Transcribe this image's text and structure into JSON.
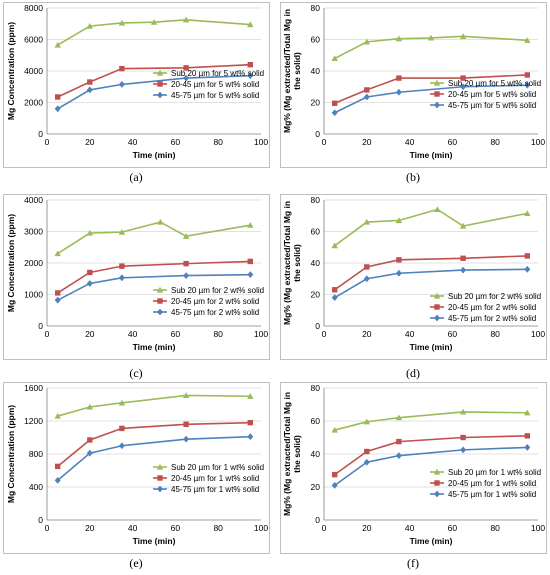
{
  "colors": {
    "green": "#9BBB59",
    "red": "#C0504D",
    "blue": "#4F81BD",
    "grid": "#d9d9d9",
    "frame": "#bfbfbf"
  },
  "labels": [
    "(a)",
    "(b)",
    "(c)",
    "(d)",
    "(e)",
    "(f)"
  ],
  "chart_data": [
    {
      "type": "line",
      "xlabel": "Time (min)",
      "ylabel": "Mg Concentration (ppm)",
      "xlim": [
        0,
        100
      ],
      "ylim": [
        0,
        8000
      ],
      "xticks": [
        0,
        20,
        40,
        60,
        80,
        100
      ],
      "yticks": [
        0,
        2000,
        4000,
        6000,
        8000
      ],
      "legend_position": "center-right",
      "series": [
        {
          "name": "Sub 20 µm for 5 wt% solid",
          "color": "#9BBB59",
          "marker": "triangle",
          "x": [
            5,
            20,
            35,
            50,
            65,
            95
          ],
          "values": [
            5650,
            6850,
            7050,
            7100,
            7250,
            6950
          ]
        },
        {
          "name": "20-45 µm for 5 wt% solid",
          "color": "#C0504D",
          "marker": "square",
          "x": [
            5,
            20,
            35,
            65,
            95
          ],
          "values": [
            2350,
            3300,
            4150,
            4200,
            4400
          ]
        },
        {
          "name": "45-75 µm for 5 wt% solid",
          "color": "#4F81BD",
          "marker": "diamond",
          "x": [
            5,
            20,
            35,
            65,
            95
          ],
          "values": [
            1600,
            2800,
            3150,
            3550,
            3700
          ]
        }
      ]
    },
    {
      "type": "line",
      "xlabel": "Time (min)",
      "ylabel": "Mg% (Mg extracted/Total Mg in the solid)",
      "xlim": [
        0,
        100
      ],
      "ylim": [
        0,
        80
      ],
      "xticks": [
        0,
        20,
        40,
        60,
        80,
        100
      ],
      "yticks": [
        0,
        20,
        40,
        60,
        80
      ],
      "legend_position": "center-right",
      "series": [
        {
          "name": "Sub 20 µm for 5 wt% solid",
          "color": "#9BBB59",
          "marker": "triangle",
          "x": [
            5,
            20,
            35,
            50,
            65,
            95
          ],
          "values": [
            48,
            58.5,
            60.5,
            61,
            62,
            59.5
          ]
        },
        {
          "name": "20-45 µm for 5 wt% solid",
          "color": "#C0504D",
          "marker": "square",
          "x": [
            5,
            20,
            35,
            65,
            95
          ],
          "values": [
            19.5,
            28,
            35.5,
            35.5,
            37.5
          ]
        },
        {
          "name": "45-75 µm for 5 wt% solid",
          "color": "#4F81BD",
          "marker": "diamond",
          "x": [
            5,
            20,
            35,
            65,
            95
          ],
          "values": [
            13.5,
            23.5,
            26.5,
            30,
            31
          ]
        }
      ]
    },
    {
      "type": "line",
      "xlabel": "Time (min)",
      "ylabel": "Mg Concentration (ppm)",
      "xlim": [
        0,
        100
      ],
      "ylim": [
        0,
        4000
      ],
      "xticks": [
        0,
        20,
        40,
        60,
        80,
        100
      ],
      "yticks": [
        0,
        1000,
        2000,
        3000,
        4000
      ],
      "legend_position": "bottom-right",
      "series": [
        {
          "name": "Sub 20 µm for 2 wt% solid",
          "color": "#9BBB59",
          "marker": "triangle",
          "x": [
            5,
            20,
            35,
            53,
            65,
            95
          ],
          "values": [
            2300,
            2950,
            2980,
            3300,
            2850,
            3200
          ]
        },
        {
          "name": "20-45 µm for 2 wt% solid",
          "color": "#C0504D",
          "marker": "square",
          "x": [
            5,
            20,
            35,
            65,
            95
          ],
          "values": [
            1050,
            1700,
            1900,
            1980,
            2050
          ]
        },
        {
          "name": "45-75 µm for 2 wt% solid",
          "color": "#4F81BD",
          "marker": "diamond",
          "x": [
            5,
            20,
            35,
            65,
            95
          ],
          "values": [
            820,
            1350,
            1530,
            1600,
            1630
          ]
        }
      ]
    },
    {
      "type": "line",
      "xlabel": "Time (min)",
      "ylabel": "Mg% (Mg extracted/Total Mg in the solid)",
      "xlim": [
        0,
        100
      ],
      "ylim": [
        0,
        80
      ],
      "xticks": [
        0,
        20,
        40,
        60,
        80,
        100
      ],
      "yticks": [
        0,
        20,
        40,
        60,
        80
      ],
      "legend_position": "bottom-right",
      "series": [
        {
          "name": "Sub 20 µm for 2 wt% solid",
          "color": "#9BBB59",
          "marker": "triangle",
          "x": [
            5,
            20,
            35,
            53,
            65,
            95
          ],
          "values": [
            51,
            66,
            67,
            74,
            63.5,
            71.5
          ]
        },
        {
          "name": "20-45 µm for 2 wt% solid",
          "color": "#C0504D",
          "marker": "square",
          "x": [
            5,
            20,
            35,
            65,
            95
          ],
          "values": [
            23,
            37.5,
            42,
            43,
            44.5
          ]
        },
        {
          "name": "45-75 µm for 2 wt% solid",
          "color": "#4F81BD",
          "marker": "diamond",
          "x": [
            5,
            20,
            35,
            65,
            95
          ],
          "values": [
            18,
            30,
            33.5,
            35.5,
            36
          ]
        }
      ]
    },
    {
      "type": "line",
      "xlabel": "Time (min)",
      "ylabel": "Mg Concentration (ppm)",
      "xlim": [
        0,
        100
      ],
      "ylim": [
        0,
        1600
      ],
      "xticks": [
        0,
        20,
        40,
        60,
        80,
        100
      ],
      "yticks": [
        0,
        400,
        800,
        1200,
        1600
      ],
      "legend_position": "bottom-right",
      "series": [
        {
          "name": "Sub 20 µm for 1 wt% solid",
          "color": "#9BBB59",
          "marker": "triangle",
          "x": [
            5,
            20,
            35,
            65,
            95
          ],
          "values": [
            1260,
            1370,
            1420,
            1510,
            1500
          ]
        },
        {
          "name": "20-45 µm for 1 wt% solid",
          "color": "#C0504D",
          "marker": "square",
          "x": [
            5,
            20,
            35,
            65,
            95
          ],
          "values": [
            650,
            970,
            1110,
            1160,
            1180
          ]
        },
        {
          "name": "45-75 µm for 1 wt% solid",
          "color": "#4F81BD",
          "marker": "diamond",
          "x": [
            5,
            20,
            35,
            65,
            95
          ],
          "values": [
            480,
            810,
            900,
            980,
            1010
          ]
        }
      ]
    },
    {
      "type": "line",
      "xlabel": "Time (min)",
      "ylabel": "Mg% (Mg extracted/Total Mg in the solid)",
      "xlim": [
        0,
        100
      ],
      "ylim": [
        0,
        80
      ],
      "xticks": [
        0,
        20,
        40,
        60,
        80,
        100
      ],
      "yticks": [
        0,
        20,
        40,
        60,
        80
      ],
      "legend_position": "bottom-right",
      "series": [
        {
          "name": "Sub 20 µm for 1 wt% solid",
          "color": "#9BBB59",
          "marker": "triangle",
          "x": [
            5,
            20,
            35,
            65,
            95
          ],
          "values": [
            54.5,
            59.5,
            62,
            65.5,
            65
          ]
        },
        {
          "name": "20-45 µm for 1 wt% solid",
          "color": "#C0504D",
          "marker": "square",
          "x": [
            5,
            20,
            35,
            65,
            95
          ],
          "values": [
            27.5,
            41.5,
            47.5,
            50,
            51
          ]
        },
        {
          "name": "45-75 µm for 1 wt% solid",
          "color": "#4F81BD",
          "marker": "diamond",
          "x": [
            5,
            20,
            35,
            65,
            95
          ],
          "values": [
            21,
            35,
            39,
            42.5,
            44
          ]
        }
      ]
    }
  ]
}
